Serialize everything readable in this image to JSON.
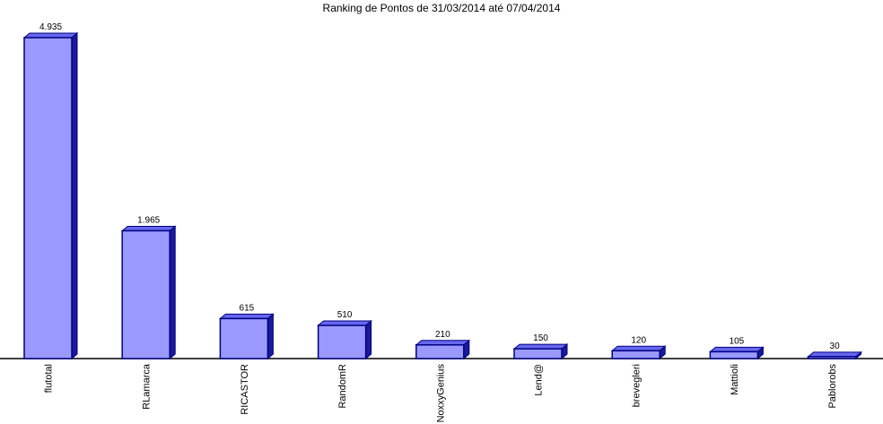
{
  "chart_data": {
    "type": "bar",
    "title": "Ranking de Pontos de 31/03/2014 até 07/04/2014",
    "categories": [
      "flutotal",
      "RLamarca",
      "RICASTOR",
      "RandomR",
      "NoxxyGenius",
      "Lend@",
      "brevegleri",
      "Mattioli",
      "Pablorobs"
    ],
    "values": [
      4935,
      1965,
      615,
      510,
      210,
      150,
      120,
      105,
      30
    ],
    "value_labels": [
      "4.935",
      "1.965",
      "615",
      "510",
      "210",
      "150",
      "120",
      "105",
      "30"
    ],
    "color": "#9999ff"
  }
}
